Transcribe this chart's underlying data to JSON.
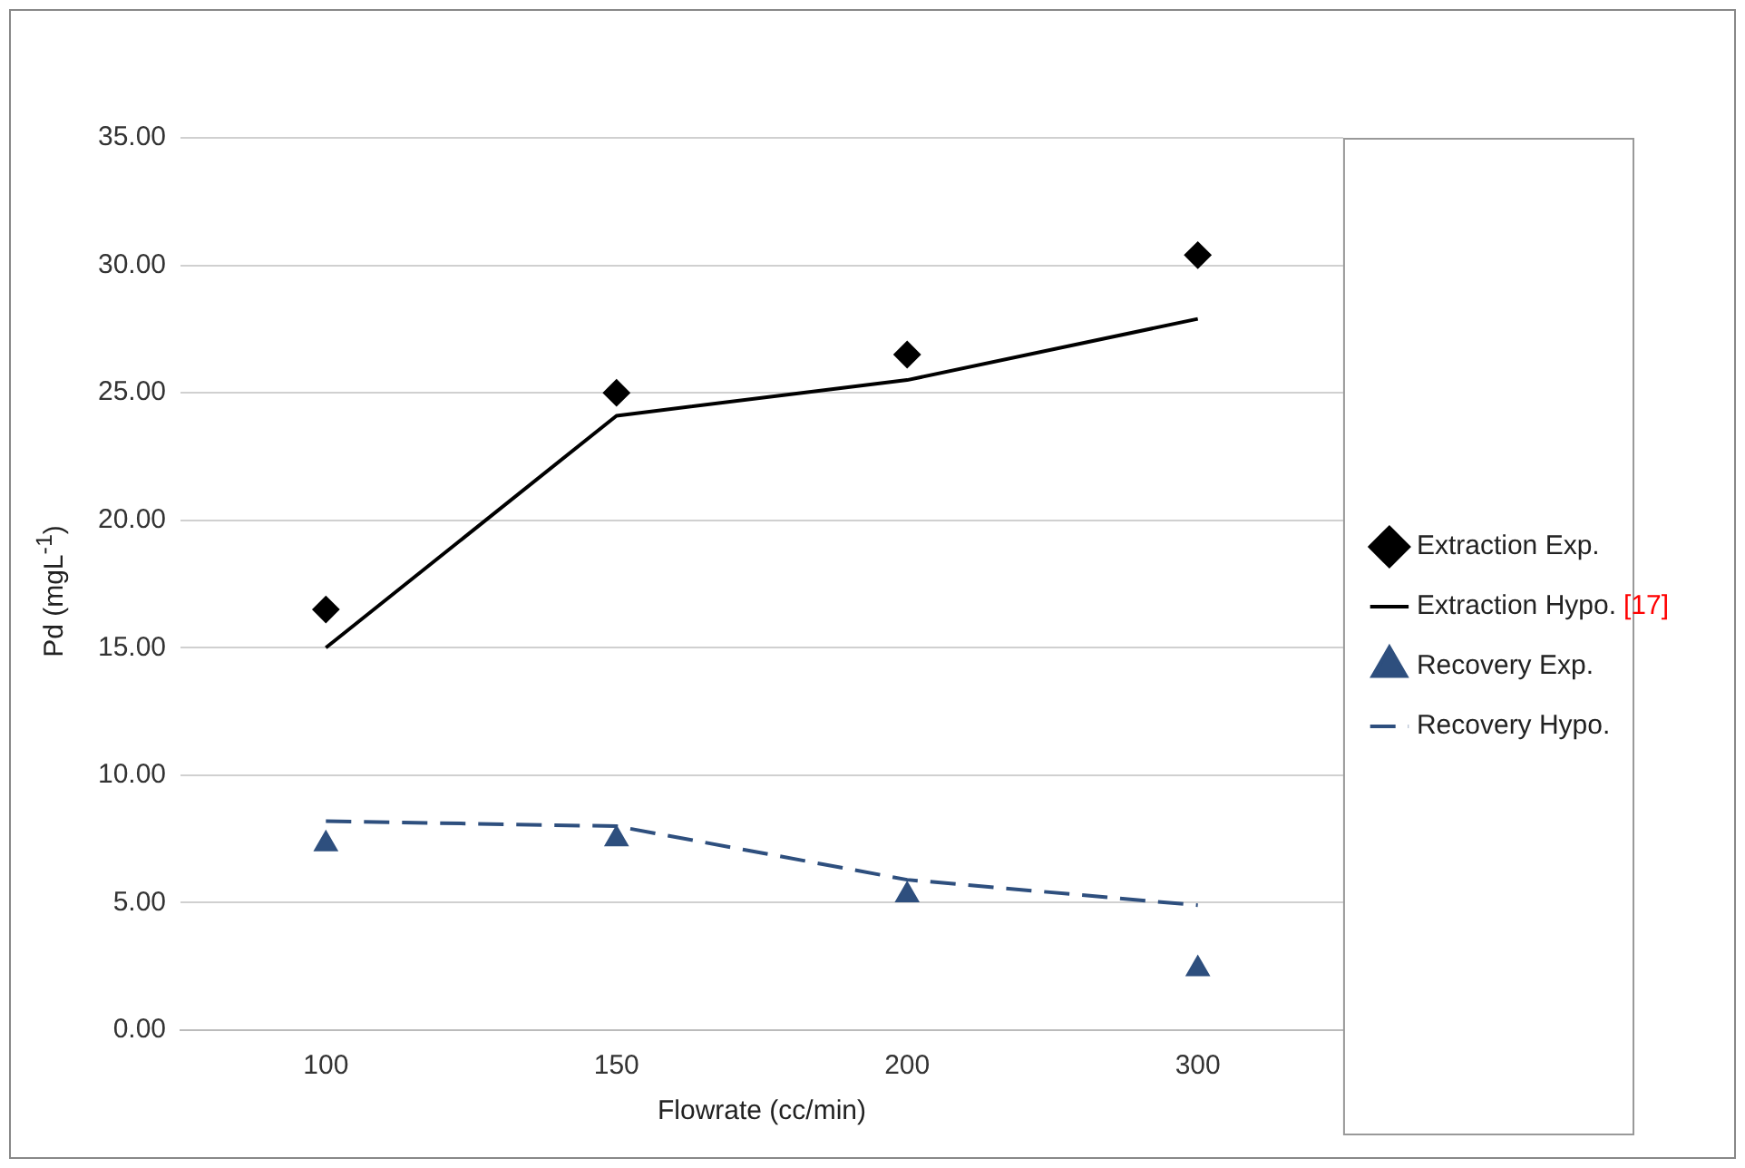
{
  "chart_data": {
    "type": "line",
    "xlabel": "Flowrate (cc/min)",
    "ylabel": "Pd (mgL$^{-1}$)",
    "categories": [
      "100",
      "150",
      "200",
      "300"
    ],
    "ylim": [
      0,
      35
    ],
    "yticks": [
      {
        "value": 0,
        "label": "0.00"
      },
      {
        "value": 5,
        "label": "5.00"
      },
      {
        "value": 10,
        "label": "10.00"
      },
      {
        "value": 15,
        "label": "15.00"
      },
      {
        "value": 20,
        "label": "20.00"
      },
      {
        "value": 25,
        "label": "25.00"
      },
      {
        "value": 30,
        "label": "30.00"
      },
      {
        "value": 35,
        "label": "35.00"
      }
    ],
    "grid": "y",
    "legend": "right",
    "annotations": [
      "[17]"
    ],
    "series": [
      {
        "name": "Extraction Exp.",
        "type": "scatter",
        "marker": "diamond",
        "color": "#000000",
        "values": [
          16.5,
          25.0,
          26.5,
          30.4
        ]
      },
      {
        "name": "Extraction Hypo.",
        "type": "line",
        "marker": "none",
        "line_style": "solid",
        "color": "#000000",
        "values": [
          15.0,
          24.1,
          25.5,
          27.9
        ]
      },
      {
        "name": "Recovery Exp.",
        "type": "scatter",
        "marker": "triangle",
        "color": "#2e4f7e",
        "values": [
          7.3,
          7.5,
          5.3,
          2.4
        ]
      },
      {
        "name": "Recovery Hypo.",
        "type": "line",
        "marker": "none",
        "line_style": "dashed",
        "color": "#2e4f7e",
        "values": [
          8.2,
          8.0,
          5.9,
          4.9
        ]
      }
    ]
  }
}
